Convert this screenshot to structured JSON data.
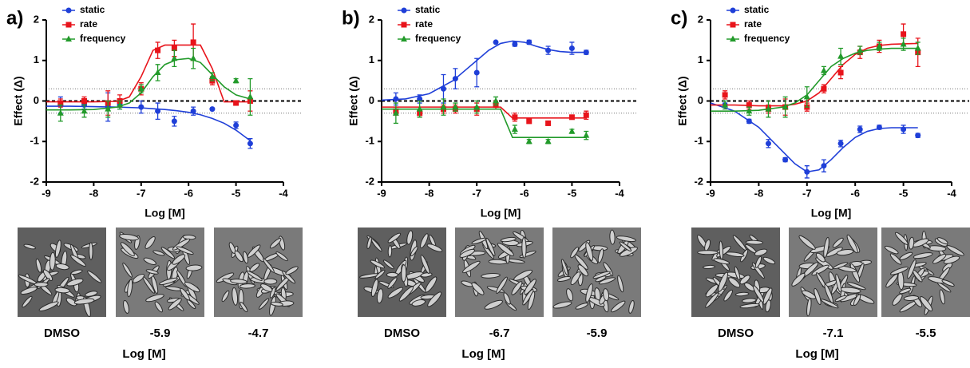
{
  "figure_panels": [
    {
      "label": "a)",
      "image_captions": [
        "DMSO",
        "-5.9",
        "-4.7"
      ],
      "image_axis_label": "Log [M]"
    },
    {
      "label": "b)",
      "image_captions": [
        "DMSO",
        "-6.7",
        "-5.9"
      ],
      "image_axis_label": "Log [M]"
    },
    {
      "label": "c)",
      "image_captions": [
        "DMSO",
        "-7.1",
        "-5.5"
      ],
      "image_axis_label": "Log [M]"
    }
  ],
  "chart_data": [
    {
      "type": "scatter",
      "x_label": "Log [M]",
      "y_label": "Effect (Δ)",
      "xlim": [
        -9,
        -4
      ],
      "ylim": [
        -2,
        2
      ],
      "xticks": [
        -9,
        -8,
        -7,
        -6,
        -5,
        -4
      ],
      "yticks": [
        -2,
        -1,
        0,
        1,
        2
      ],
      "legend": "upper left",
      "reference_lines": [
        {
          "value": 0,
          "style": "dashed"
        },
        {
          "value": 0.3,
          "style": "dotted"
        },
        {
          "value": -0.3,
          "style": "dotted"
        }
      ],
      "x": [
        -8.7,
        -8.2,
        -7.7,
        -7.45,
        -7.0,
        -6.65,
        -6.3,
        -5.9,
        -5.5,
        -5.0,
        -4.7
      ],
      "fit_x": [
        -9,
        -8.5,
        -8,
        -7.5,
        -7.25,
        -7,
        -6.75,
        -6.5,
        -6.25,
        -6,
        -5.75,
        -5.5,
        -5.25,
        -5,
        -4.7
      ],
      "series": [
        {
          "name": "static",
          "color": "#1f3fd8",
          "marker": "circle",
          "values": [
            -0.1,
            -0.1,
            -0.15,
            -0.1,
            -0.15,
            -0.25,
            -0.5,
            -0.25,
            -0.2,
            -0.6,
            -1.05
          ],
          "errors": [
            0.2,
            0.1,
            0.35,
            0.1,
            0.15,
            0.2,
            0.12,
            0.1,
            0,
            0.08,
            0.12
          ],
          "fit_values": [
            -0.13,
            -0.13,
            -0.14,
            -0.15,
            -0.16,
            -0.17,
            -0.19,
            -0.21,
            -0.24,
            -0.28,
            -0.34,
            -0.43,
            -0.55,
            -0.72,
            -0.98
          ]
        },
        {
          "name": "rate",
          "color": "#e8141b",
          "marker": "square",
          "values": [
            -0.05,
            0,
            -0.05,
            0,
            0.3,
            1.25,
            1.3,
            1.45,
            0.5,
            -0.05,
            0
          ],
          "errors": [
            0.1,
            0.1,
            0.3,
            0.15,
            0.15,
            0.2,
            0.2,
            0.45,
            0.1,
            0.05,
            0.25
          ],
          "fit_values": [
            -0.02,
            -0.02,
            -0.02,
            -0.01,
            0.1,
            0.6,
            1.25,
            1.38,
            1.38,
            1.38,
            1.38,
            0.8,
            -0.02,
            -0.02,
            -0.02
          ]
        },
        {
          "name": "frequency",
          "color": "#229a2a",
          "marker": "triangle",
          "values": [
            -0.3,
            -0.25,
            -0.2,
            -0.1,
            0.3,
            0.7,
            1.05,
            1.05,
            0.6,
            0.5,
            0.1
          ],
          "errors": [
            0.2,
            0.15,
            0.2,
            0.1,
            0.1,
            0.2,
            0.2,
            0.25,
            0.1,
            0.05,
            0.45
          ],
          "fit_values": [
            -0.22,
            -0.22,
            -0.21,
            -0.15,
            -0.05,
            0.2,
            0.6,
            0.9,
            1.02,
            1.05,
            0.95,
            0.65,
            0.35,
            0.15,
            0.05
          ]
        }
      ]
    },
    {
      "type": "scatter",
      "x_label": "Log [M]",
      "y_label": "Effect (Δ)",
      "xlim": [
        -9,
        -4
      ],
      "ylim": [
        -2,
        2
      ],
      "xticks": [
        -9,
        -8,
        -7,
        -6,
        -5,
        -4
      ],
      "yticks": [
        -2,
        -1,
        0,
        1,
        2
      ],
      "legend": "upper left",
      "reference_lines": [
        {
          "value": 0,
          "style": "dashed"
        },
        {
          "value": 0.3,
          "style": "dotted"
        },
        {
          "value": -0.3,
          "style": "dotted"
        }
      ],
      "x": [
        -8.7,
        -8.2,
        -7.7,
        -7.45,
        -7.0,
        -6.6,
        -6.2,
        -5.9,
        -5.5,
        -5.0,
        -4.7
      ],
      "fit_x": [
        -9,
        -8.5,
        -8,
        -7.5,
        -7.25,
        -7,
        -6.75,
        -6.5,
        -6.25,
        -6,
        -5.75,
        -5.5,
        -5.25,
        -5,
        -4.7
      ],
      "series": [
        {
          "name": "static",
          "color": "#1f3fd8",
          "marker": "circle",
          "values": [
            0.05,
            0.05,
            0.3,
            0.55,
            0.7,
            1.45,
            1.4,
            1.45,
            1.25,
            1.3,
            1.2
          ],
          "errors": [
            0.15,
            0.1,
            0.35,
            0.25,
            0.35,
            0,
            0.05,
            0.05,
            0.1,
            0.15,
            0.05
          ],
          "fit_values": [
            0.02,
            0.05,
            0.18,
            0.5,
            0.75,
            1.0,
            1.25,
            1.42,
            1.48,
            1.45,
            1.35,
            1.27,
            1.22,
            1.2,
            1.2
          ]
        },
        {
          "name": "rate",
          "color": "#e8141b",
          "marker": "square",
          "values": [
            -0.25,
            -0.3,
            -0.2,
            -0.2,
            -0.2,
            -0.1,
            -0.4,
            -0.5,
            -0.55,
            -0.4,
            -0.35
          ],
          "errors": [
            0.1,
            0.1,
            0.1,
            0.1,
            0.15,
            0.1,
            0.1,
            0.05,
            0.05,
            0.05,
            0.1
          ],
          "fit_values": [
            -0.15,
            -0.15,
            -0.15,
            -0.15,
            -0.15,
            -0.15,
            -0.15,
            -0.15,
            -0.42,
            -0.42,
            -0.42,
            -0.42,
            -0.42,
            -0.42,
            -0.42
          ]
        },
        {
          "name": "frequency",
          "color": "#229a2a",
          "marker": "triangle",
          "values": [
            -0.3,
            -0.2,
            -0.15,
            -0.15,
            -0.15,
            0.0,
            -0.7,
            -1.0,
            -1.0,
            -0.75,
            -0.85
          ],
          "errors": [
            0.25,
            0.2,
            0.2,
            0.1,
            0.15,
            0.1,
            0.1,
            0.05,
            0.05,
            0.05,
            0.1
          ],
          "fit_values": [
            -0.2,
            -0.2,
            -0.2,
            -0.2,
            -0.2,
            -0.2,
            -0.2,
            -0.2,
            -0.9,
            -0.9,
            -0.9,
            -0.9,
            -0.9,
            -0.9,
            -0.9
          ]
        }
      ]
    },
    {
      "type": "scatter",
      "x_label": "Log [M]",
      "y_label": "Effect (Δ)",
      "xlim": [
        -9,
        -4
      ],
      "ylim": [
        -2,
        2
      ],
      "xticks": [
        -9,
        -8,
        -7,
        -6,
        -5,
        -4
      ],
      "yticks": [
        -2,
        -1,
        0,
        1,
        2
      ],
      "legend": "upper left",
      "reference_lines": [
        {
          "value": 0,
          "style": "dashed"
        },
        {
          "value": 0.3,
          "style": "dotted"
        },
        {
          "value": -0.3,
          "style": "dotted"
        }
      ],
      "x": [
        -8.7,
        -8.2,
        -7.8,
        -7.45,
        -7.0,
        -6.65,
        -6.3,
        -5.9,
        -5.5,
        -5.0,
        -4.7
      ],
      "fit_x": [
        -9,
        -8.5,
        -8,
        -7.5,
        -7.25,
        -7,
        -6.75,
        -6.5,
        -6.25,
        -6,
        -5.75,
        -5.5,
        -5.25,
        -5,
        -4.7
      ],
      "series": [
        {
          "name": "static",
          "color": "#1f3fd8",
          "marker": "circle",
          "values": [
            -0.1,
            -0.5,
            -1.05,
            -1.45,
            -1.75,
            -1.6,
            -1.05,
            -0.7,
            -0.65,
            -0.7,
            -0.85
          ],
          "errors": [
            0.05,
            0.05,
            0.1,
            0.05,
            0.15,
            0.15,
            0.08,
            0.08,
            0.05,
            0.1,
            0.05
          ],
          "fit_values": [
            -0.05,
            -0.25,
            -0.65,
            -1.25,
            -1.55,
            -1.75,
            -1.7,
            -1.45,
            -1.15,
            -0.9,
            -0.75,
            -0.68,
            -0.66,
            -0.66,
            -0.66
          ]
        },
        {
          "name": "rate",
          "color": "#e8141b",
          "marker": "square",
          "values": [
            0.15,
            -0.1,
            -0.2,
            -0.15,
            -0.15,
            0.3,
            0.7,
            1.2,
            1.35,
            1.65,
            1.2
          ],
          "errors": [
            0.1,
            0.1,
            0.1,
            0.2,
            0.1,
            0.1,
            0.15,
            0.15,
            0.15,
            0.25,
            0.35
          ],
          "fit_values": [
            -0.1,
            -0.1,
            -0.12,
            -0.12,
            -0.08,
            0.0,
            0.2,
            0.55,
            0.9,
            1.15,
            1.3,
            1.37,
            1.4,
            1.41,
            1.42
          ]
        },
        {
          "name": "frequency",
          "color": "#229a2a",
          "marker": "triangle",
          "values": [
            -0.1,
            -0.25,
            -0.2,
            -0.15,
            0.1,
            0.75,
            1.1,
            1.25,
            1.35,
            1.4,
            1.3
          ],
          "errors": [
            0.1,
            0.1,
            0.2,
            0.25,
            0.25,
            0.1,
            0.2,
            0.1,
            0.1,
            0.15,
            0.15
          ],
          "fit_values": [
            -0.25,
            -0.25,
            -0.23,
            -0.15,
            -0.05,
            0.15,
            0.5,
            0.85,
            1.05,
            1.18,
            1.25,
            1.28,
            1.3,
            1.3,
            1.3
          ]
        }
      ]
    }
  ]
}
